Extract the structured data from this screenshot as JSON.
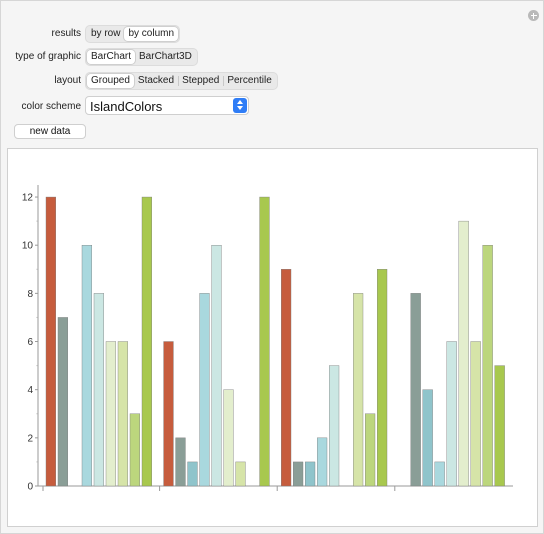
{
  "controls": {
    "results": {
      "label": "results",
      "options": [
        "by row",
        "by column"
      ],
      "selected": "by column"
    },
    "type_of_graphic": {
      "label": "type of graphic",
      "options": [
        "BarChart",
        "BarChart3D"
      ],
      "selected": "BarChart"
    },
    "layout": {
      "label": "layout",
      "options": [
        "Grouped",
        "Stacked",
        "Stepped",
        "Percentile"
      ],
      "selected": "Grouped"
    },
    "color_scheme": {
      "label": "color scheme",
      "value": "IslandColors"
    },
    "new_data_label": "new data"
  },
  "chart_data": {
    "type": "bar",
    "layout": "grouped",
    "ylim": [
      0,
      12.5
    ],
    "yticks": [
      0,
      2,
      4,
      6,
      8,
      10,
      12
    ],
    "colors": [
      "#c65c3d",
      "#8a9e97",
      "#8fc4cb",
      "#a9d8de",
      "#cbe7e3",
      "#e3eecd",
      "#d6e4a8",
      "#bcd67d",
      "#a8c84e"
    ],
    "groups": [
      [
        12,
        7,
        0,
        10,
        8,
        6,
        6,
        3,
        12
      ],
      [
        6,
        2,
        1,
        8,
        10,
        4,
        1,
        0,
        12
      ],
      [
        9,
        1,
        1,
        2,
        5,
        0,
        8,
        3,
        9
      ],
      [
        0,
        8,
        4,
        1,
        6,
        11,
        6,
        10,
        5
      ]
    ]
  }
}
